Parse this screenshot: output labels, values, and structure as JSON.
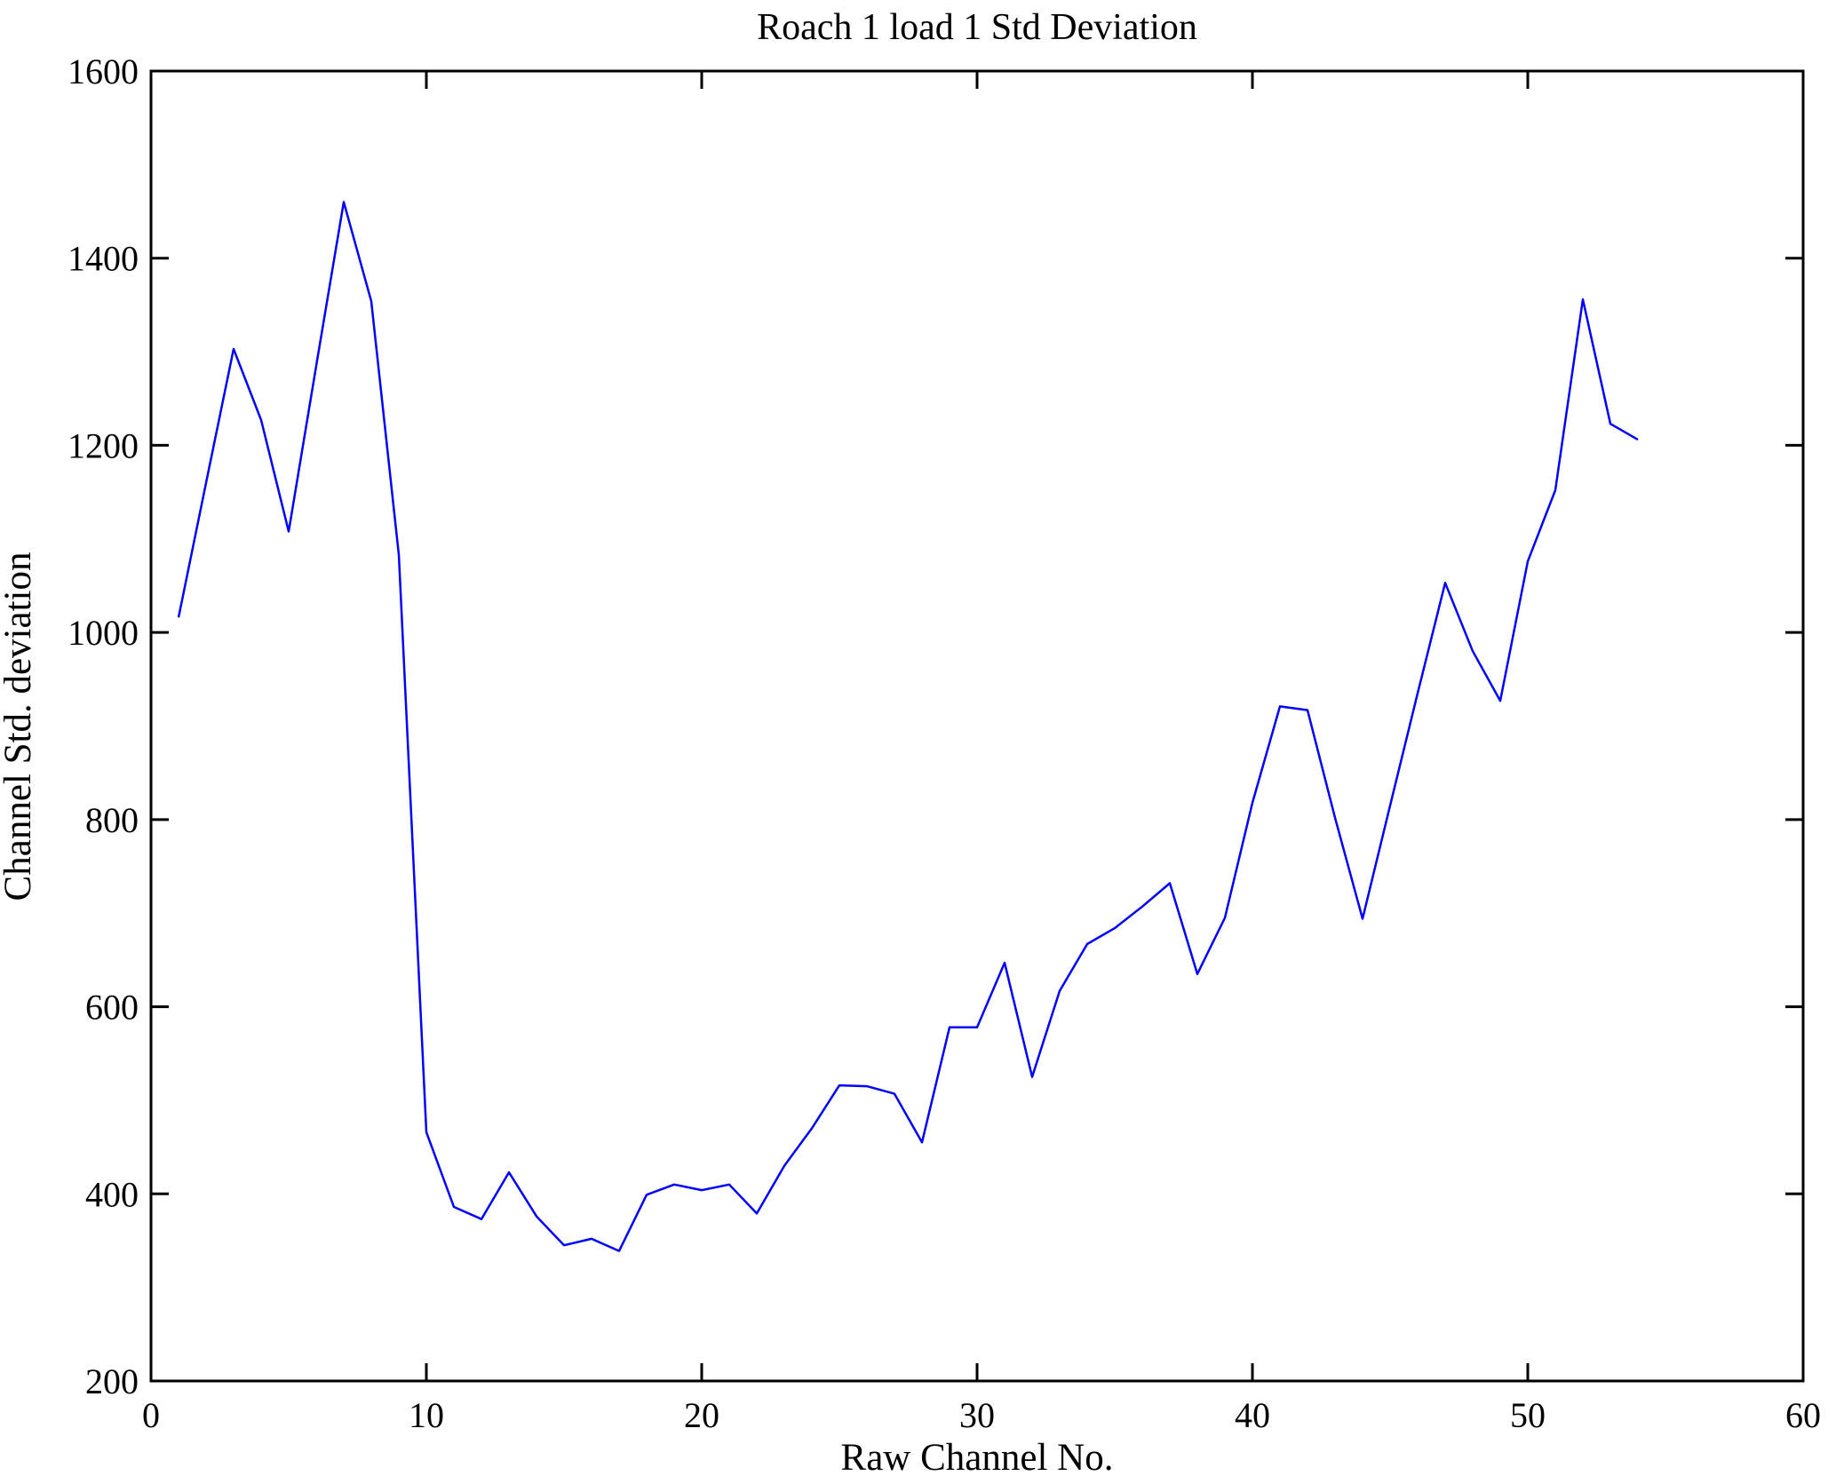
{
  "figure": {
    "title": "Roach 1 load 1 Std Deviation",
    "xlabel": "Raw Channel No.",
    "ylabel": "Channel Std. deviation",
    "background_color": "#ffffff",
    "axis_color": "#000000"
  },
  "chart_data": {
    "type": "line",
    "title": "Roach 1 load 1 Std Deviation",
    "xlabel": "Raw Channel No.",
    "ylabel": "Channel Std. deviation",
    "xlim": [
      0,
      60
    ],
    "ylim": [
      200,
      1600
    ],
    "xticks": [
      0,
      10,
      20,
      30,
      40,
      50,
      60
    ],
    "yticks": [
      200,
      400,
      600,
      800,
      1000,
      1200,
      1400,
      1600
    ],
    "grid": false,
    "legend_position": "none",
    "line_color": "#0000ff",
    "line_width": 2.5,
    "x": [
      1,
      2,
      3,
      4,
      5,
      6,
      7,
      8,
      9,
      10,
      11,
      12,
      13,
      14,
      15,
      16,
      17,
      18,
      19,
      20,
      21,
      22,
      23,
      24,
      25,
      26,
      27,
      28,
      29,
      30,
      31,
      32,
      33,
      34,
      35,
      36,
      37,
      38,
      39,
      40,
      41,
      42,
      43,
      44,
      45,
      46,
      47,
      48,
      49,
      50,
      51,
      52,
      53,
      54
    ],
    "values": [
      1016,
      1160,
      1303,
      1227,
      1108,
      1285,
      1460,
      1354,
      1083,
      466,
      386,
      373,
      423,
      376,
      345,
      352,
      339,
      399,
      410,
      404,
      410,
      379,
      430,
      470,
      516,
      515,
      507,
      455,
      578,
      578,
      647,
      525,
      617,
      667,
      684,
      707,
      732,
      635,
      695,
      818,
      921,
      917,
      802,
      694,
      815,
      935,
      1053,
      980,
      927,
      1076,
      1152,
      1356,
      1223,
      1206
    ]
  }
}
